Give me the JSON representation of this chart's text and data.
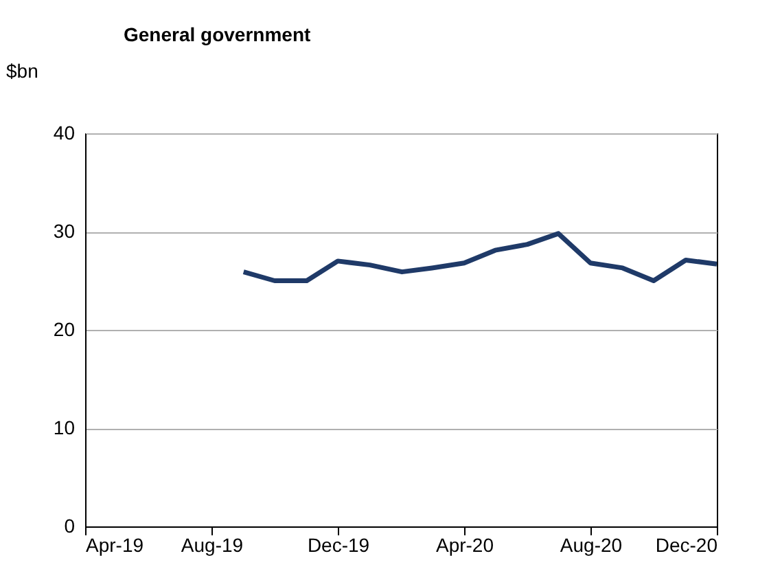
{
  "chart_data": {
    "type": "line",
    "title": "General government",
    "ylabel": "$bn",
    "x": [
      "2019-09",
      "2019-10",
      "2019-11",
      "2019-12",
      "2020-01",
      "2020-02",
      "2020-03",
      "2020-04",
      "2020-05",
      "2020-06",
      "2020-07",
      "2020-08",
      "2020-09",
      "2020-10",
      "2020-11",
      "2020-12"
    ],
    "series": [
      {
        "color": "#1f3a68",
        "values": [
          25.9,
          25.0,
          25.0,
          27.0,
          26.6,
          25.9,
          26.3,
          26.8,
          28.1,
          28.7,
          29.8,
          26.8,
          26.3,
          25.0,
          27.1,
          26.7
        ]
      }
    ],
    "xlim": [
      "2019-04",
      "2020-12"
    ],
    "xticks": [
      {
        "value": "2019-04",
        "label": "Apr-19"
      },
      {
        "value": "2019-08",
        "label": "Aug-19"
      },
      {
        "value": "2019-12",
        "label": "Dec-19"
      },
      {
        "value": "2020-04",
        "label": "Apr-20"
      },
      {
        "value": "2020-08",
        "label": "Aug-20"
      },
      {
        "value": "2020-12",
        "label": "Dec-20"
      }
    ],
    "ylim": [
      0,
      40
    ],
    "yticks": [
      0,
      10,
      20,
      30,
      40
    ],
    "grid": "y",
    "line_style": "solid"
  }
}
